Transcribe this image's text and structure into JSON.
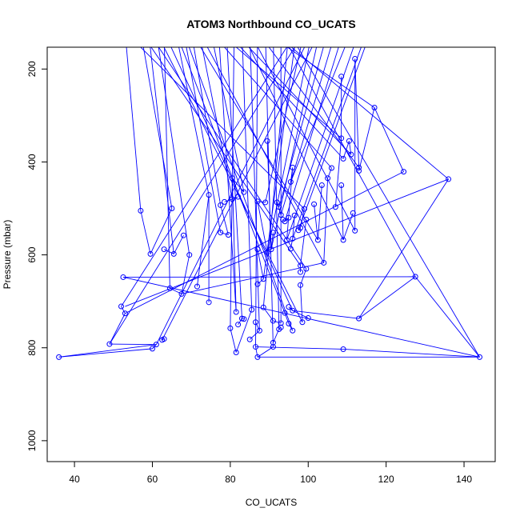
{
  "chart_data": {
    "type": "line",
    "title": "ATOM3 Northbound CO_UCATS",
    "xlabel": "CO_UCATS",
    "ylabel": "Pressure (mbar)",
    "xlim": [
      33,
      148
    ],
    "ylim": [
      1045,
      153
    ],
    "y_reversed": true,
    "x_ticks": [
      40,
      60,
      80,
      100,
      120,
      140
    ],
    "y_ticks": [
      200,
      400,
      600,
      800,
      1000
    ],
    "grid": false,
    "legend": "none",
    "series": [
      {
        "color": "#0000ff",
        "markers": "open-circle",
        "points_pressure_below_150": [
          [
            57,
            505
          ],
          [
            59.5,
            598
          ],
          [
            65,
            500
          ],
          [
            68,
            558
          ],
          [
            65.5,
            598
          ],
          [
            63,
            588
          ],
          [
            69.5,
            600
          ],
          [
            67.5,
            684
          ],
          [
            64.5,
            672
          ],
          [
            71.5,
            668
          ],
          [
            74.5,
            471
          ],
          [
            74.5,
            702
          ],
          [
            77.5,
            552
          ],
          [
            79.5,
            557
          ],
          [
            77.5,
            493
          ],
          [
            78.5,
            486
          ],
          [
            80.5,
            480
          ],
          [
            82,
            475
          ],
          [
            83.5,
            465
          ],
          [
            80.5,
            435
          ],
          [
            81.5,
            723
          ],
          [
            82,
            750
          ],
          [
            83,
            737
          ],
          [
            83.5,
            738
          ],
          [
            80,
            758
          ],
          [
            81.5,
            810
          ],
          [
            85.5,
            718
          ],
          [
            86.5,
            745
          ],
          [
            87.5,
            763
          ],
          [
            85,
            782
          ],
          [
            86.5,
            798
          ],
          [
            87,
            820
          ],
          [
            91,
            798
          ],
          [
            91,
            789
          ],
          [
            92.5,
            760
          ],
          [
            93,
            756
          ],
          [
            93,
            747
          ],
          [
            91,
            742
          ],
          [
            88.5,
            713
          ],
          [
            87,
            663
          ],
          [
            88.5,
            652
          ],
          [
            87,
            588
          ],
          [
            89,
            487
          ],
          [
            87,
            485
          ],
          [
            89.5,
            595
          ],
          [
            89.5,
            355
          ],
          [
            90.5,
            588
          ],
          [
            91,
            552
          ],
          [
            92.5,
            497
          ],
          [
            92,
            487
          ],
          [
            93,
            514
          ],
          [
            93.5,
            524
          ],
          [
            94,
            528
          ],
          [
            95,
            520
          ],
          [
            95.5,
            443
          ],
          [
            96,
            412
          ],
          [
            94.5,
            568
          ],
          [
            95.5,
            587
          ],
          [
            96,
            565
          ],
          [
            96.5,
            515
          ],
          [
            97.5,
            547
          ],
          [
            98,
            542
          ],
          [
            99,
            501
          ],
          [
            99.5,
            524
          ],
          [
            98,
            623
          ],
          [
            98,
            637
          ],
          [
            99.5,
            630
          ],
          [
            98,
            665
          ],
          [
            98.5,
            745
          ],
          [
            100,
            736
          ],
          [
            96,
            720
          ],
          [
            95,
            712
          ],
          [
            94,
            725
          ],
          [
            95,
            748
          ],
          [
            96,
            763
          ],
          [
            101.5,
            491
          ],
          [
            102.5,
            568
          ],
          [
            103.5,
            450
          ],
          [
            104,
            617
          ],
          [
            105,
            435
          ],
          [
            106,
            413
          ],
          [
            107,
            497
          ],
          [
            108.5,
            349
          ],
          [
            108.5,
            216
          ],
          [
            109,
            393
          ],
          [
            110.5,
            355
          ],
          [
            111,
            384
          ],
          [
            108.5,
            450
          ],
          [
            109,
            568
          ],
          [
            111.5,
            510
          ],
          [
            112,
            548
          ],
          [
            112,
            178
          ],
          [
            113,
            412
          ],
          [
            113,
            419
          ],
          [
            117,
            283
          ],
          [
            124.5,
            421
          ],
          [
            136,
            437
          ],
          [
            113,
            737
          ],
          [
            127.5,
            647
          ],
          [
            109,
            803
          ],
          [
            144,
            820
          ],
          [
            52.5,
            648
          ],
          [
            52,
            711
          ],
          [
            53,
            726
          ],
          [
            49,
            792
          ],
          [
            36,
            820
          ],
          [
            61,
            793
          ],
          [
            60,
            802
          ],
          [
            62.5,
            783
          ],
          [
            63,
            781
          ]
        ]
      }
    ]
  }
}
